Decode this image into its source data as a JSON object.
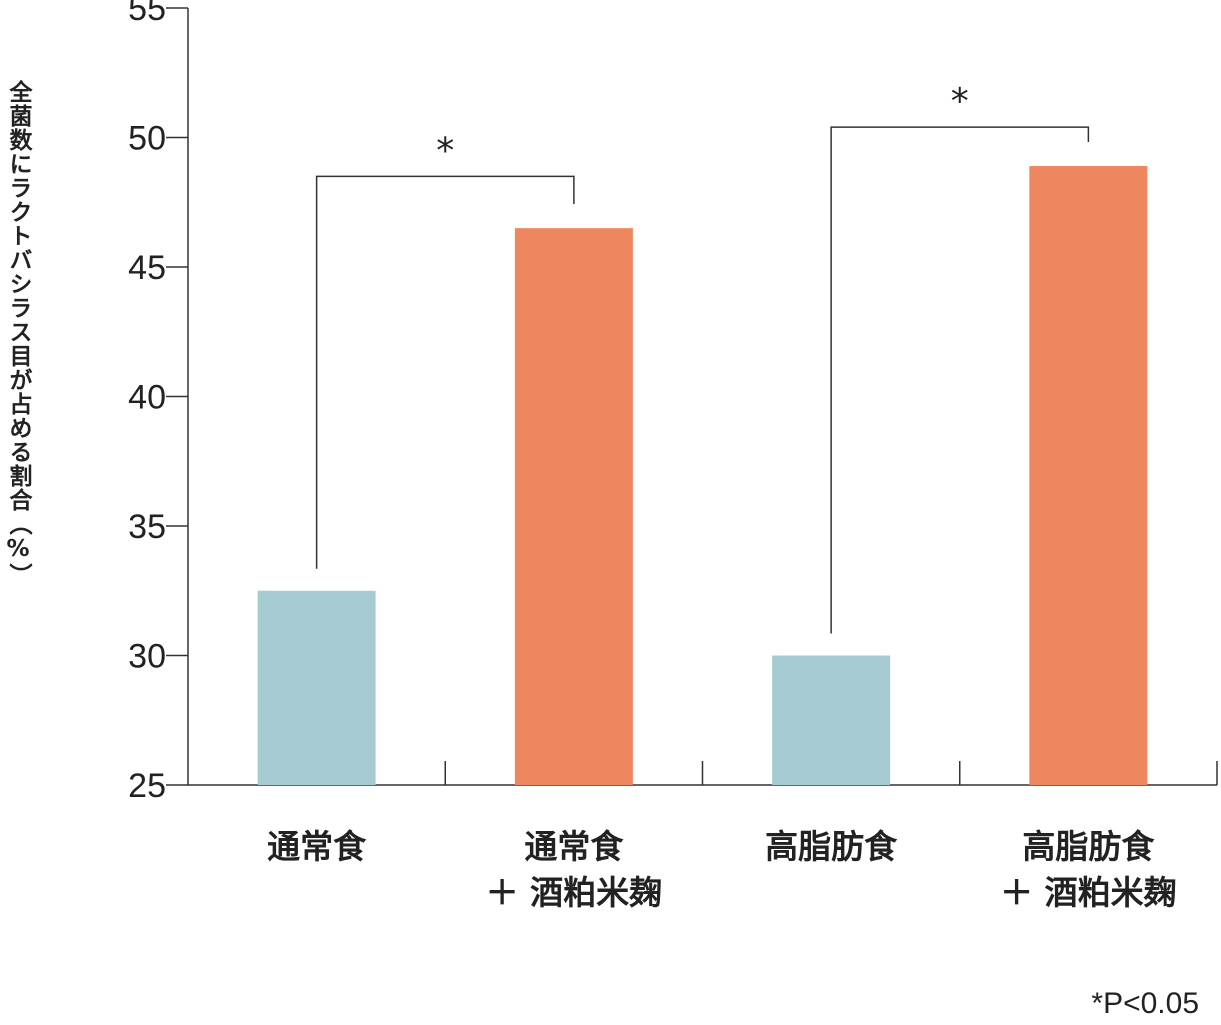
{
  "chart_data": {
    "type": "bar",
    "ylabel": "全菌数にラクトバシラス目が占める割合（%）",
    "ylim": [
      25,
      55
    ],
    "yticks": [
      25,
      30,
      35,
      40,
      45,
      50,
      55
    ],
    "categories": [
      [
        "通常食"
      ],
      [
        "通常食",
        "＋ 酒粕米麹"
      ],
      [
        "高脂肪食"
      ],
      [
        "高脂肪食",
        "＋ 酒粕米麹"
      ]
    ],
    "values": [
      32.5,
      46.5,
      30.0,
      48.9
    ],
    "colors": [
      "#a7cbd3",
      "#ee865f",
      "#a7cbd3",
      "#ee865f"
    ],
    "significance": [
      {
        "pair": [
          0,
          1
        ],
        "label": "*",
        "level": 48.5
      },
      {
        "pair": [
          2,
          3
        ],
        "label": "*",
        "level": 50.4
      }
    ],
    "footnote": "*P<0.05",
    "grid": false
  }
}
